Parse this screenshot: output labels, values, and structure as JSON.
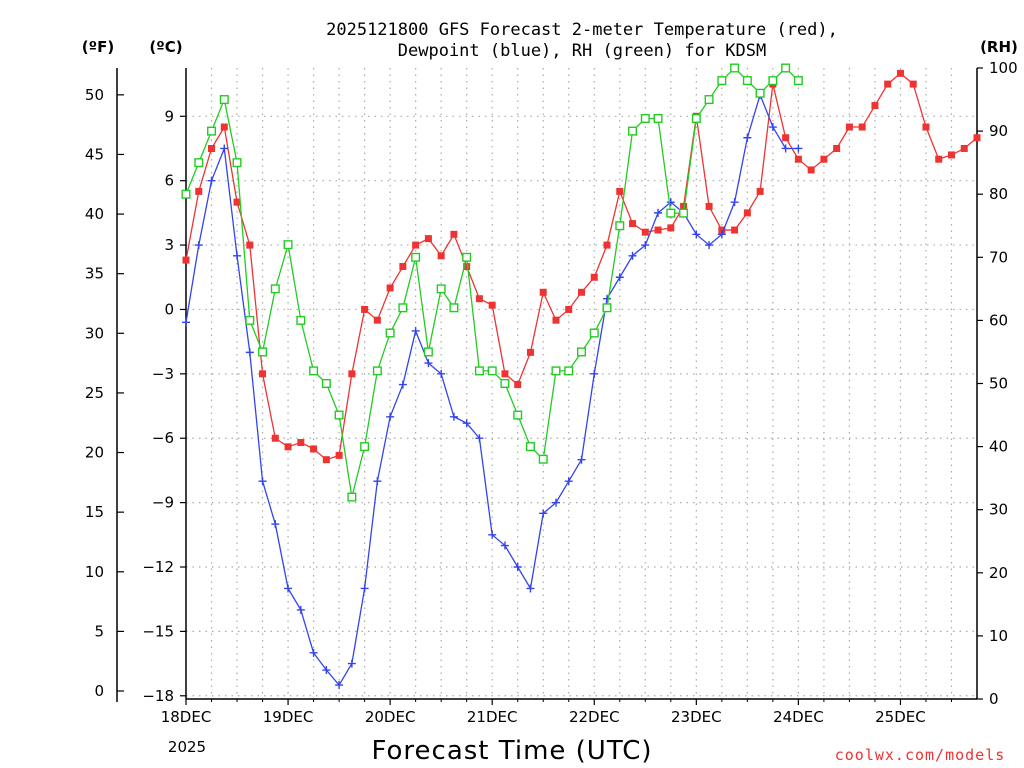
{
  "chart_data": {
    "type": "line",
    "title_line1": "2025121800 GFS Forecast 2-meter Temperature (red),",
    "title_line2": "Dewpoint (blue), RH (green) for KDSM",
    "xlabel": "Forecast Time (UTC)",
    "credit": "coolwx.com/models",
    "left_outer_unit": "(ºF)",
    "left_inner_unit": "(ºC)",
    "right_unit": "(RH)",
    "x_ticks": [
      "18DEC",
      "19DEC",
      "20DEC",
      "21DEC",
      "22DEC",
      "23DEC",
      "24DEC",
      "25DEC"
    ],
    "x_tick_year": "2025",
    "x_range_hours": [
      0,
      186
    ],
    "fahrenheit_ticks": [
      0,
      5,
      10,
      15,
      20,
      25,
      30,
      35,
      40,
      45,
      50
    ],
    "celsius_ticks": [
      -18,
      -15,
      -12,
      -9,
      -6,
      -3,
      0,
      3,
      6,
      9
    ],
    "rh_ticks": [
      0,
      10,
      20,
      30,
      40,
      50,
      60,
      70,
      80,
      90,
      100
    ],
    "y_range_celsius": [
      -18.15,
      11.25
    ],
    "y_range_rh": [
      0,
      100
    ],
    "grid": true,
    "series": [
      {
        "name": "Temperature",
        "color": "#ee3333",
        "marker": "filled-square",
        "axis": "celsius",
        "points": [
          [
            0,
            2.3
          ],
          [
            3,
            5.5
          ],
          [
            6,
            7.5
          ],
          [
            9,
            8.5
          ],
          [
            12,
            5.0
          ],
          [
            15,
            3.0
          ],
          [
            18,
            -3.0
          ],
          [
            21,
            -6.0
          ],
          [
            24,
            -6.4
          ],
          [
            27,
            -6.2
          ],
          [
            30,
            -6.5
          ],
          [
            33,
            -7.0
          ],
          [
            36,
            -6.8
          ],
          [
            39,
            -3.0
          ],
          [
            42,
            0.0
          ],
          [
            45,
            -0.5
          ],
          [
            48,
            1.0
          ],
          [
            51,
            2.0
          ],
          [
            54,
            3.0
          ],
          [
            57,
            3.3
          ],
          [
            60,
            2.5
          ],
          [
            63,
            3.5
          ],
          [
            66,
            2.0
          ],
          [
            69,
            0.5
          ],
          [
            72,
            0.2
          ],
          [
            75,
            -3.0
          ],
          [
            78,
            -3.5
          ],
          [
            81,
            -2.0
          ],
          [
            84,
            0.8
          ],
          [
            87,
            -0.5
          ],
          [
            90,
            0.0
          ],
          [
            93,
            0.8
          ],
          [
            96,
            1.5
          ],
          [
            99,
            3.0
          ],
          [
            102,
            5.5
          ],
          [
            105,
            4.0
          ],
          [
            108,
            3.6
          ],
          [
            111,
            3.7
          ],
          [
            114,
            3.8
          ],
          [
            117,
            4.8
          ],
          [
            120,
            9.0
          ],
          [
            123,
            4.8
          ],
          [
            126,
            3.7
          ],
          [
            129,
            3.7
          ],
          [
            132,
            4.5
          ],
          [
            135,
            5.5
          ],
          [
            138,
            10.5
          ],
          [
            141,
            8.0
          ],
          [
            144,
            7.0
          ],
          [
            147,
            6.5
          ],
          [
            150,
            7.0
          ],
          [
            153,
            7.5
          ],
          [
            156,
            8.5
          ],
          [
            159,
            8.5
          ],
          [
            162,
            9.5
          ],
          [
            165,
            10.5
          ],
          [
            168,
            11.0
          ],
          [
            171,
            10.5
          ],
          [
            174,
            8.5
          ],
          [
            177,
            7.0
          ],
          [
            180,
            7.2
          ],
          [
            183,
            7.5
          ],
          [
            186,
            8.0
          ]
        ]
      },
      {
        "name": "Dewpoint",
        "color": "#3344ee",
        "marker": "plus",
        "axis": "celsius",
        "points": [
          [
            0,
            -0.6
          ],
          [
            3,
            3.0
          ],
          [
            6,
            6.0
          ],
          [
            9,
            7.5
          ],
          [
            12,
            2.5
          ],
          [
            15,
            -2.0
          ],
          [
            18,
            -8.0
          ],
          [
            21,
            -10.0
          ],
          [
            24,
            -13.0
          ],
          [
            27,
            -14.0
          ],
          [
            30,
            -16.0
          ],
          [
            33,
            -16.8
          ],
          [
            36,
            -17.5
          ],
          [
            39,
            -16.5
          ],
          [
            42,
            -13.0
          ],
          [
            45,
            -8.0
          ],
          [
            48,
            -5.0
          ],
          [
            51,
            -3.5
          ],
          [
            54,
            -1.0
          ],
          [
            57,
            -2.5
          ],
          [
            60,
            -3.0
          ],
          [
            63,
            -5.0
          ],
          [
            66,
            -5.3
          ],
          [
            69,
            -6.0
          ],
          [
            72,
            -10.5
          ],
          [
            75,
            -11.0
          ],
          [
            78,
            -12.0
          ],
          [
            81,
            -13.0
          ],
          [
            84,
            -9.5
          ],
          [
            87,
            -9.0
          ],
          [
            90,
            -8.0
          ],
          [
            93,
            -7.0
          ],
          [
            96,
            -3.0
          ],
          [
            99,
            0.5
          ],
          [
            102,
            1.5
          ],
          [
            105,
            2.5
          ],
          [
            108,
            3.0
          ],
          [
            111,
            4.5
          ],
          [
            114,
            5.0
          ],
          [
            117,
            4.5
          ],
          [
            120,
            3.5
          ],
          [
            123,
            3.0
          ],
          [
            126,
            3.5
          ],
          [
            129,
            5.0
          ],
          [
            132,
            8.0
          ],
          [
            135,
            10.0
          ],
          [
            138,
            8.5
          ],
          [
            141,
            7.5
          ],
          [
            144,
            7.5
          ]
        ]
      },
      {
        "name": "RH",
        "color": "#22cc22",
        "marker": "open-square",
        "axis": "rh",
        "points": [
          [
            0,
            80
          ],
          [
            3,
            85
          ],
          [
            6,
            90
          ],
          [
            9,
            95
          ],
          [
            12,
            85
          ],
          [
            15,
            60
          ],
          [
            18,
            55
          ],
          [
            21,
            65
          ],
          [
            24,
            72
          ],
          [
            27,
            60
          ],
          [
            30,
            52
          ],
          [
            33,
            50
          ],
          [
            36,
            45
          ],
          [
            39,
            32
          ],
          [
            42,
            40
          ],
          [
            45,
            52
          ],
          [
            48,
            58
          ],
          [
            51,
            62
          ],
          [
            54,
            70
          ],
          [
            57,
            55
          ],
          [
            60,
            65
          ],
          [
            63,
            62
          ],
          [
            66,
            70
          ],
          [
            69,
            52
          ],
          [
            72,
            52
          ],
          [
            75,
            50
          ],
          [
            78,
            45
          ],
          [
            81,
            40
          ],
          [
            84,
            38
          ],
          [
            87,
            52
          ],
          [
            90,
            52
          ],
          [
            93,
            55
          ],
          [
            96,
            58
          ],
          [
            99,
            62
          ],
          [
            102,
            75
          ],
          [
            105,
            90
          ],
          [
            108,
            92
          ],
          [
            111,
            92
          ],
          [
            114,
            77
          ],
          [
            117,
            77
          ],
          [
            120,
            92
          ],
          [
            123,
            95
          ],
          [
            126,
            98
          ],
          [
            129,
            100
          ],
          [
            132,
            98
          ],
          [
            135,
            96
          ],
          [
            138,
            98
          ],
          [
            141,
            100
          ],
          [
            144,
            98
          ]
        ]
      }
    ]
  }
}
